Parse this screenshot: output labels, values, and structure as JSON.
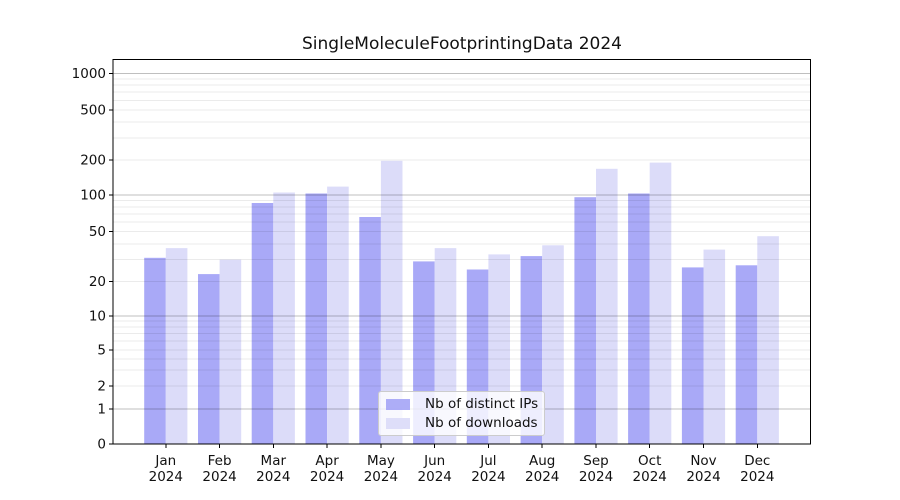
{
  "title": "SingleMoleculeFootprintingData 2024",
  "legend": {
    "items": [
      {
        "label": "Nb of distinct IPs",
        "key": "distinct_ips"
      },
      {
        "label": "Nb of downloads",
        "key": "downloads"
      }
    ]
  },
  "colors": {
    "distinct_ips": "#a9a9f7",
    "downloads": "#dcdcf9",
    "axis": "#000000",
    "grid_major": "rgba(0,0,0,0.25)",
    "grid_minor": "rgba(0,0,0,0.08)",
    "text": "#111111",
    "legend_border": "#cccccc"
  },
  "chart_data": {
    "type": "bar",
    "title": "SingleMoleculeFootprintingData 2024",
    "categories": [
      "Jan 2024",
      "Feb 2024",
      "Mar 2024",
      "Apr 2024",
      "May 2024",
      "Jun 2024",
      "Jul 2024",
      "Aug 2024",
      "Sep 2024",
      "Oct 2024",
      "Nov 2024",
      "Dec 2024"
    ],
    "series": [
      {
        "name": "Nb of distinct IPs",
        "color": "#a9a9f7",
        "values": [
          31,
          23,
          86,
          103,
          66,
          29,
          25,
          32,
          96,
          103,
          26,
          27
        ]
      },
      {
        "name": "Nb of downloads",
        "color": "#dcdcf9",
        "values": [
          37,
          30,
          105,
          118,
          197,
          37,
          33,
          39,
          168,
          190,
          36,
          46
        ]
      }
    ],
    "xlabel": "",
    "ylabel": "",
    "yscale": "symlog",
    "yticks": [
      0,
      1,
      2,
      5,
      10,
      20,
      50,
      100,
      200,
      500,
      1000
    ],
    "ylim": [
      0,
      1300
    ],
    "grid": "horizontal log minors + majors",
    "legend_position": "lower center (inside axes)"
  }
}
